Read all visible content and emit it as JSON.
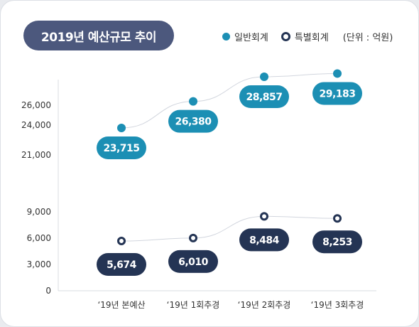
{
  "title": "2019년 예산규모 추이",
  "legend": {
    "general": "일반회계",
    "special": "특별회계",
    "unit": "(단위 : 억원)"
  },
  "colors": {
    "general": "#1c8fb4",
    "special": "#243454",
    "title_bg": "#4c587d"
  },
  "chart_data": {
    "type": "line",
    "categories": [
      "‘19년 본예산",
      "‘19년 1회추경",
      "‘19년 2회추경",
      "‘19년 3회추경"
    ],
    "series": [
      {
        "name": "일반회계",
        "values": [
          23715,
          26380,
          28857,
          29183
        ],
        "labels": [
          "23,715",
          "26,380",
          "28,857",
          "29,183"
        ]
      },
      {
        "name": "특별회계",
        "values": [
          5674,
          6010,
          8484,
          8253
        ],
        "labels": [
          "5,674",
          "6,010",
          "8,484",
          "8,253"
        ]
      }
    ],
    "y_ticks": [
      0,
      3000,
      6000,
      9000,
      21000,
      24000,
      26000
    ],
    "y_tick_labels": [
      "0",
      "3,000",
      "6,000",
      "9,000",
      "21,000",
      "24,000",
      "26,000"
    ],
    "y_axis": "broken",
    "grid": false
  }
}
